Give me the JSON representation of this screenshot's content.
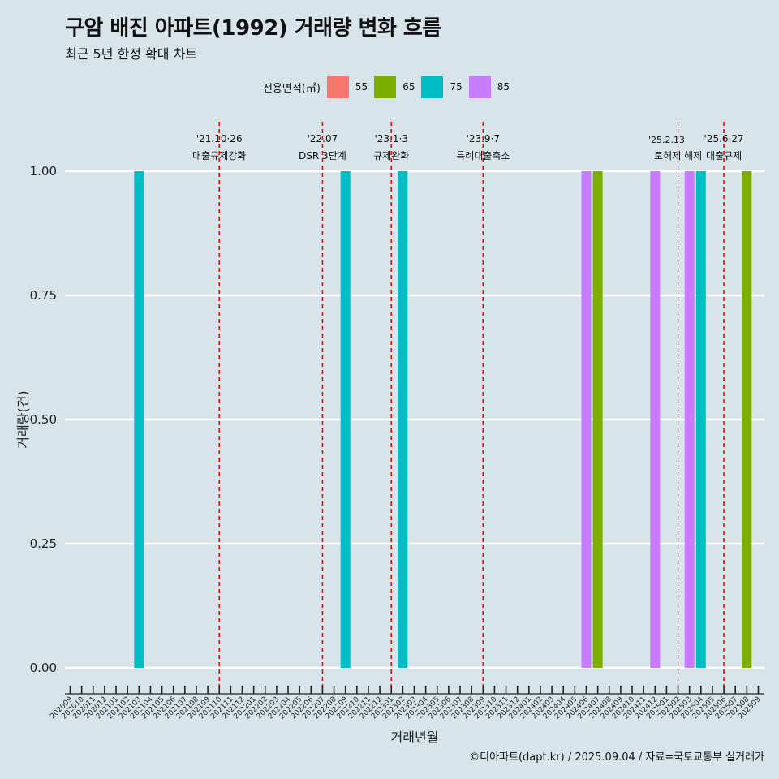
{
  "title": "구암 배진 아파트(1992) 거래량 변화 흐름",
  "subtitle": "최근 5년 한정 확대 차트",
  "caption": "©디아파트(dapt.kr) / 2025.09.04 / 자료=국토교통부 실거래가",
  "legend": {
    "title": "전용면적(㎡)",
    "items": [
      {
        "label": "55",
        "color": "#f8766d"
      },
      {
        "label": "65",
        "color": "#7cae00"
      },
      {
        "label": "75",
        "color": "#00bfc4"
      },
      {
        "label": "85",
        "color": "#c77cff"
      }
    ]
  },
  "chart_data": {
    "type": "bar",
    "xlabel": "거래년월",
    "ylabel": "거래량(건)",
    "ylim": [
      0,
      1
    ],
    "yticks": [
      "0.00",
      "0.25",
      "0.50",
      "0.75",
      "1.00"
    ],
    "categories": [
      "202009",
      "202010",
      "202011",
      "202012",
      "202101",
      "202102",
      "202103",
      "202104",
      "202105",
      "202106",
      "202107",
      "202108",
      "202109",
      "202110",
      "202111",
      "202112",
      "202201",
      "202202",
      "202203",
      "202204",
      "202205",
      "202206",
      "202207",
      "202208",
      "202209",
      "202210",
      "202211",
      "202212",
      "202301",
      "202302",
      "202303",
      "202304",
      "202305",
      "202306",
      "202307",
      "202308",
      "202309",
      "202310",
      "202311",
      "202312",
      "202401",
      "202402",
      "202403",
      "202404",
      "202405",
      "202406",
      "202407",
      "202408",
      "202409",
      "202410",
      "202411",
      "202412",
      "202501",
      "202502",
      "202503",
      "202504",
      "202505",
      "202506",
      "202507",
      "202508",
      "202509"
    ],
    "series": [
      {
        "name": "55",
        "color": "#f8766d",
        "points": []
      },
      {
        "name": "65",
        "color": "#7cae00",
        "points": [
          {
            "x": "202407",
            "y": 1
          },
          {
            "x": "202508",
            "y": 1
          }
        ]
      },
      {
        "name": "75",
        "color": "#00bfc4",
        "points": [
          {
            "x": "202103",
            "y": 1
          },
          {
            "x": "202209",
            "y": 1
          },
          {
            "x": "202302",
            "y": 1
          },
          {
            "x": "202504",
            "y": 1
          }
        ]
      },
      {
        "name": "85",
        "color": "#c77cff",
        "points": [
          {
            "x": "202406",
            "y": 1
          },
          {
            "x": "202412",
            "y": 1
          },
          {
            "x": "202503",
            "y": 1
          }
        ]
      }
    ],
    "annotations": [
      {
        "x": "202110",
        "date": "'21.10·26",
        "label": "대출규제강화"
      },
      {
        "x": "202207",
        "date": "'22.07",
        "label": "DSR 3단계"
      },
      {
        "x": "202301",
        "date": "'23.1·3",
        "label": "규제완화"
      },
      {
        "x": "202309",
        "date": "'23.9·7",
        "label": "특례대출축소"
      },
      {
        "x": "202502",
        "date": "'25.2.13",
        "label": "토허제 해제"
      },
      {
        "x": "202506",
        "date": "'25.6·27",
        "label": "대출규제"
      }
    ],
    "grid": "horizontal"
  }
}
